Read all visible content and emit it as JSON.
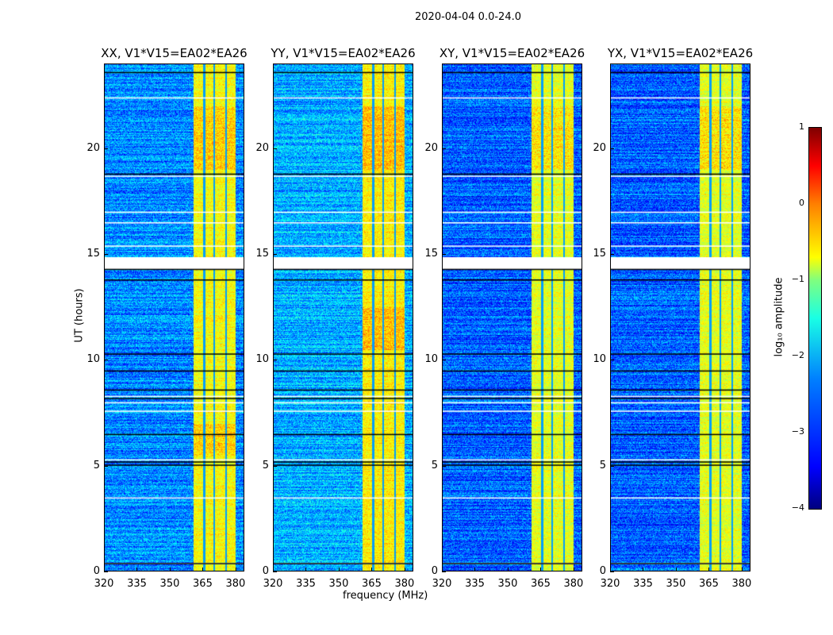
{
  "chart_data": {
    "type": "heatmap",
    "title": "2020-04-04 0.0-24.0",
    "xlabel": "frequency (MHz)",
    "ylabel": "UT (hours)",
    "xlim": [
      320,
      384
    ],
    "ylim": [
      0,
      24
    ],
    "xticks": [
      "320",
      "335",
      "350",
      "365",
      "380"
    ],
    "xtick_values": [
      320,
      335,
      350,
      365,
      380
    ],
    "yticks": [
      "0",
      "5",
      "10",
      "15",
      "20"
    ],
    "ytick_values": [
      0,
      5,
      10,
      15,
      20
    ],
    "panels": [
      {
        "title": "XX, V1*V15=EA02*EA26",
        "background_log_amp": -2.7,
        "band_log_amp": -0.9,
        "bright_times": [
          [
            19,
            22
          ],
          [
            5.5,
            7
          ]
        ]
      },
      {
        "title": "YY, V1*V15=EA02*EA26",
        "background_log_amp": -2.5,
        "band_log_amp": -0.8,
        "bright_times": [
          [
            19,
            22
          ],
          [
            10.5,
            12.5
          ]
        ]
      },
      {
        "title": "XY, V1*V15=EA02*EA26",
        "background_log_amp": -2.9,
        "band_log_amp": -1.0,
        "bright_times": [
          [
            19,
            22
          ]
        ]
      },
      {
        "title": "YX, V1*V15=EA02*EA26",
        "background_log_amp": -2.9,
        "band_log_amp": -1.0,
        "bright_times": [
          [
            19,
            22
          ]
        ]
      }
    ],
    "rfi_band_mhz": [
      360.5,
      380
    ],
    "rfi_subband_edges_mhz": [
      365.5,
      370,
      375.5
    ],
    "flagged_times_hours": [
      14.4,
      14.55,
      14.7,
      14.85,
      18.7,
      22.4,
      8.3,
      8.0,
      7.6,
      5.3,
      3.5,
      0.4,
      15.4,
      16.5,
      17.0
    ],
    "black_lines_hours": [
      23.6,
      18.8,
      14.3,
      13.8,
      10.3,
      9.5,
      8.6,
      8.2,
      6.5,
      5.2,
      5.05,
      0.4
    ],
    "colorbar": {
      "label": "log₁₀ amplitude",
      "range": [
        -4,
        1
      ],
      "ticks": [
        "1",
        "0",
        "−1",
        "−2",
        "−3",
        "−4"
      ],
      "tick_values": [
        1,
        0,
        -1,
        -2,
        -3,
        -4
      ],
      "colormap": "jet"
    }
  }
}
